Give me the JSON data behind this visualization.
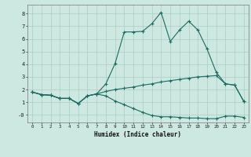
{
  "xlabel": "Humidex (Indice chaleur)",
  "bg_color": "#cce8e0",
  "grid_color": "#aaccc4",
  "line_color": "#1a6b60",
  "xlim": [
    -0.5,
    23.5
  ],
  "ylim": [
    -0.6,
    8.7
  ],
  "yticks": [
    0,
    1,
    2,
    3,
    4,
    5,
    6,
    7,
    8
  ],
  "ytick_labels": [
    "-0",
    "1",
    "2",
    "3",
    "4",
    "5",
    "6",
    "7",
    "8"
  ],
  "xticks": [
    0,
    1,
    2,
    3,
    4,
    5,
    6,
    7,
    8,
    9,
    10,
    11,
    12,
    13,
    14,
    15,
    16,
    17,
    18,
    19,
    20,
    21,
    22,
    23
  ],
  "line1_x": [
    0,
    1,
    2,
    3,
    4,
    5,
    6,
    7,
    8,
    9,
    10,
    11,
    12,
    13,
    14,
    15,
    16,
    17,
    18,
    19,
    20,
    21,
    22,
    23
  ],
  "line1_y": [
    1.8,
    1.6,
    1.55,
    1.3,
    1.3,
    0.9,
    1.5,
    1.65,
    2.45,
    4.05,
    6.55,
    6.55,
    6.6,
    7.2,
    8.1,
    5.8,
    6.7,
    7.4,
    6.7,
    5.2,
    3.35,
    2.45,
    2.35,
    1.05
  ],
  "line2_x": [
    0,
    1,
    2,
    3,
    4,
    5,
    6,
    7,
    8,
    9,
    10,
    11,
    12,
    13,
    14,
    15,
    16,
    17,
    18,
    19,
    20,
    21,
    22,
    23
  ],
  "line2_y": [
    1.8,
    1.6,
    1.55,
    1.3,
    1.3,
    0.9,
    1.5,
    1.65,
    1.85,
    2.0,
    2.1,
    2.2,
    2.35,
    2.45,
    2.6,
    2.7,
    2.8,
    2.9,
    3.0,
    3.05,
    3.1,
    2.45,
    2.35,
    1.05
  ],
  "line3_x": [
    0,
    1,
    2,
    3,
    4,
    5,
    6,
    7,
    8,
    9,
    10,
    11,
    12,
    13,
    14,
    15,
    16,
    17,
    18,
    19,
    20,
    21,
    22,
    23
  ],
  "line3_y": [
    1.8,
    1.6,
    1.55,
    1.3,
    1.3,
    0.9,
    1.5,
    1.65,
    1.5,
    1.1,
    0.8,
    0.5,
    0.2,
    -0.05,
    -0.15,
    -0.15,
    -0.2,
    -0.25,
    -0.25,
    -0.3,
    -0.3,
    -0.1,
    -0.1,
    -0.2
  ]
}
